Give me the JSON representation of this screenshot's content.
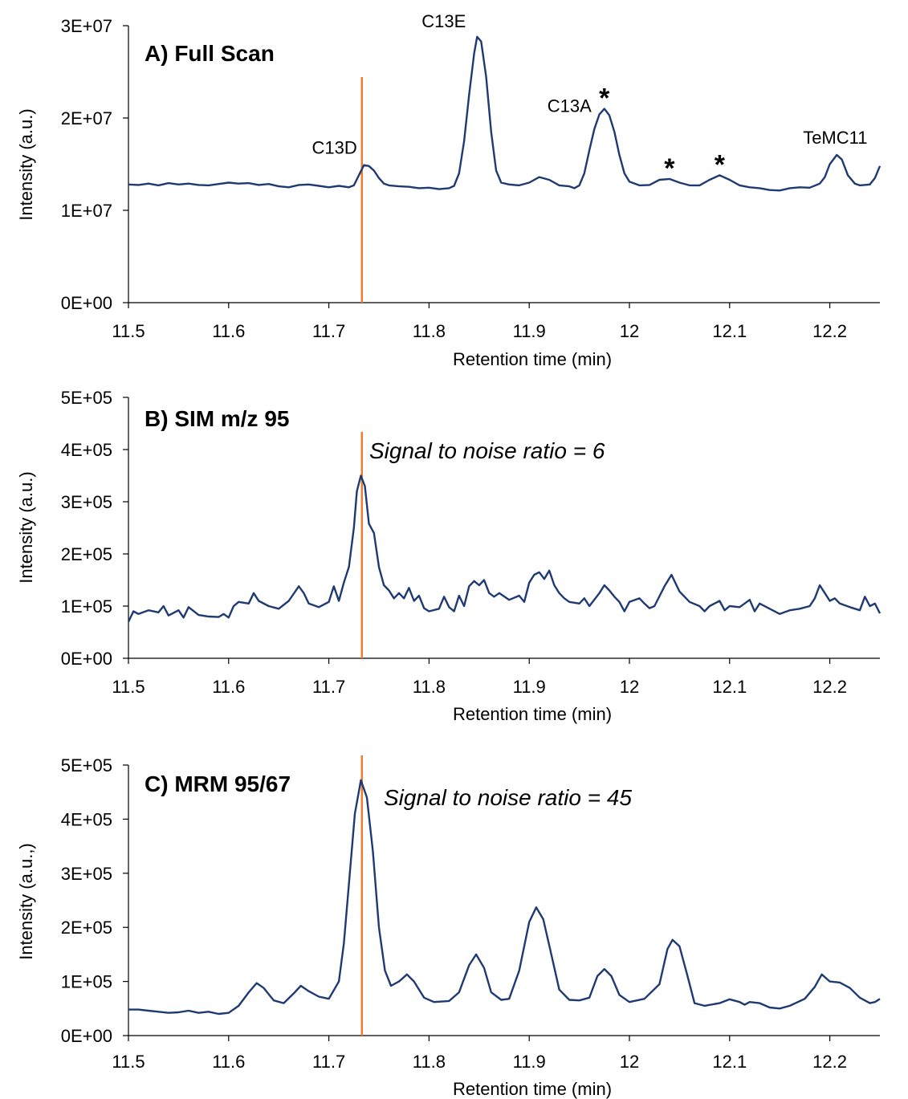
{
  "colors": {
    "trace": "#1f3a73",
    "marker": "#ed7d31",
    "axis": "#000000"
  },
  "chart_data": [
    {
      "type": "line",
      "title": "A) Full Scan",
      "xlabel": "Retention time (min)",
      "ylabel": "Intensity (a.u.)",
      "xlim": [
        11.5,
        12.25
      ],
      "ylim": [
        0,
        30000000
      ],
      "xticks": [
        "11.5",
        "11.6",
        "11.7",
        "11.8",
        "11.9",
        "12",
        "12.1",
        "12.2"
      ],
      "yticks": [
        "0E+00",
        "1E+07",
        "2E+07",
        "3E+07"
      ],
      "marker_x": 11.733,
      "peak_labels": [
        {
          "text": "C13D",
          "x": 11.733,
          "y": 14900000
        },
        {
          "text": "C13E",
          "x": 11.848,
          "y": 28800000
        },
        {
          "text": "C13A",
          "x": 11.975,
          "y": 21000000
        },
        {
          "text": "TeMC11",
          "x": 12.207,
          "y": 16000000
        }
      ],
      "stars": [
        {
          "x": 11.975,
          "y": 21000000
        },
        {
          "x": 12.04,
          "y": 13400000
        },
        {
          "x": 12.09,
          "y": 13800000
        }
      ],
      "points": [
        [
          11.5,
          12800000
        ],
        [
          11.51,
          12750000
        ],
        [
          11.52,
          12900000
        ],
        [
          11.53,
          12700000
        ],
        [
          11.54,
          12950000
        ],
        [
          11.55,
          12800000
        ],
        [
          11.56,
          12900000
        ],
        [
          11.57,
          12750000
        ],
        [
          11.58,
          12700000
        ],
        [
          11.59,
          12850000
        ],
        [
          11.6,
          13000000
        ],
        [
          11.61,
          12900000
        ],
        [
          11.62,
          12950000
        ],
        [
          11.63,
          12750000
        ],
        [
          11.64,
          12850000
        ],
        [
          11.65,
          12600000
        ],
        [
          11.66,
          12500000
        ],
        [
          11.67,
          12750000
        ],
        [
          11.68,
          12800000
        ],
        [
          11.69,
          12650000
        ],
        [
          11.7,
          12500000
        ],
        [
          11.71,
          12650000
        ],
        [
          11.72,
          12500000
        ],
        [
          11.725,
          12700000
        ],
        [
          11.73,
          13800000
        ],
        [
          11.735,
          14900000
        ],
        [
          11.74,
          14800000
        ],
        [
          11.745,
          14300000
        ],
        [
          11.75,
          13500000
        ],
        [
          11.755,
          12900000
        ],
        [
          11.76,
          12700000
        ],
        [
          11.77,
          12600000
        ],
        [
          11.78,
          12550000
        ],
        [
          11.79,
          12400000
        ],
        [
          11.8,
          12450000
        ],
        [
          11.81,
          12300000
        ],
        [
          11.82,
          12400000
        ],
        [
          11.825,
          12650000
        ],
        [
          11.83,
          14000000
        ],
        [
          11.835,
          17500000
        ],
        [
          11.84,
          22500000
        ],
        [
          11.845,
          27000000
        ],
        [
          11.848,
          28800000
        ],
        [
          11.852,
          28300000
        ],
        [
          11.857,
          24500000
        ],
        [
          11.862,
          18500000
        ],
        [
          11.867,
          14300000
        ],
        [
          11.872,
          13000000
        ],
        [
          11.88,
          12800000
        ],
        [
          11.89,
          12700000
        ],
        [
          11.9,
          13000000
        ],
        [
          11.91,
          13600000
        ],
        [
          11.92,
          13300000
        ],
        [
          11.93,
          12700000
        ],
        [
          11.94,
          12600000
        ],
        [
          11.945,
          12400000
        ],
        [
          11.95,
          12700000
        ],
        [
          11.955,
          14000000
        ],
        [
          11.96,
          16500000
        ],
        [
          11.965,
          18800000
        ],
        [
          11.97,
          20400000
        ],
        [
          11.975,
          21000000
        ],
        [
          11.98,
          20300000
        ],
        [
          11.985,
          18500000
        ],
        [
          11.99,
          16000000
        ],
        [
          11.995,
          14000000
        ],
        [
          12.0,
          13100000
        ],
        [
          12.01,
          12700000
        ],
        [
          12.02,
          12750000
        ],
        [
          12.03,
          13300000
        ],
        [
          12.04,
          13400000
        ],
        [
          12.05,
          13000000
        ],
        [
          12.06,
          12700000
        ],
        [
          12.07,
          12700000
        ],
        [
          12.08,
          13300000
        ],
        [
          12.09,
          13800000
        ],
        [
          12.1,
          13300000
        ],
        [
          12.11,
          12700000
        ],
        [
          12.12,
          12500000
        ],
        [
          12.13,
          12400000
        ],
        [
          12.14,
          12200000
        ],
        [
          12.15,
          12150000
        ],
        [
          12.16,
          12400000
        ],
        [
          12.17,
          12500000
        ],
        [
          12.18,
          12450000
        ],
        [
          12.19,
          12900000
        ],
        [
          12.195,
          13600000
        ],
        [
          12.2,
          15000000
        ],
        [
          12.207,
          16000000
        ],
        [
          12.212,
          15500000
        ],
        [
          12.218,
          13800000
        ],
        [
          12.225,
          12900000
        ],
        [
          12.23,
          12700000
        ],
        [
          12.24,
          12800000
        ],
        [
          12.245,
          13500000
        ],
        [
          12.25,
          14800000
        ]
      ]
    },
    {
      "type": "line",
      "title": "B) SIM m/z 95",
      "annotation": "Signal to noise ratio = 6",
      "xlabel": "Retention time (min)",
      "ylabel": "Intensity (a.u.)",
      "xlim": [
        11.5,
        12.25
      ],
      "ylim": [
        0,
        500000
      ],
      "xticks": [
        "11.5",
        "11.6",
        "11.7",
        "11.8",
        "11.9",
        "12",
        "12.1",
        "12.2"
      ],
      "yticks": [
        "0E+00",
        "1E+05",
        "2E+05",
        "3E+05",
        "4E+05",
        "5E+05"
      ],
      "marker_x": 11.733,
      "points": [
        [
          11.5,
          70000
        ],
        [
          11.505,
          90000
        ],
        [
          11.51,
          85000
        ],
        [
          11.52,
          92000
        ],
        [
          11.53,
          88000
        ],
        [
          11.535,
          100000
        ],
        [
          11.54,
          82000
        ],
        [
          11.55,
          92000
        ],
        [
          11.555,
          78000
        ],
        [
          11.56,
          98000
        ],
        [
          11.57,
          83000
        ],
        [
          11.58,
          80000
        ],
        [
          11.59,
          79000
        ],
        [
          11.595,
          85000
        ],
        [
          11.6,
          78000
        ],
        [
          11.605,
          100000
        ],
        [
          11.61,
          108000
        ],
        [
          11.62,
          105000
        ],
        [
          11.625,
          125000
        ],
        [
          11.63,
          110000
        ],
        [
          11.64,
          100000
        ],
        [
          11.65,
          95000
        ],
        [
          11.66,
          110000
        ],
        [
          11.67,
          138000
        ],
        [
          11.675,
          125000
        ],
        [
          11.68,
          105000
        ],
        [
          11.69,
          98000
        ],
        [
          11.7,
          108000
        ],
        [
          11.705,
          138000
        ],
        [
          11.71,
          110000
        ],
        [
          11.715,
          145000
        ],
        [
          11.72,
          175000
        ],
        [
          11.725,
          250000
        ],
        [
          11.728,
          320000
        ],
        [
          11.732,
          350000
        ],
        [
          11.736,
          330000
        ],
        [
          11.74,
          258000
        ],
        [
          11.745,
          240000
        ],
        [
          11.75,
          175000
        ],
        [
          11.755,
          140000
        ],
        [
          11.76,
          130000
        ],
        [
          11.765,
          115000
        ],
        [
          11.77,
          125000
        ],
        [
          11.775,
          115000
        ],
        [
          11.78,
          135000
        ],
        [
          11.785,
          110000
        ],
        [
          11.79,
          120000
        ],
        [
          11.795,
          96000
        ],
        [
          11.8,
          90000
        ],
        [
          11.81,
          95000
        ],
        [
          11.815,
          118000
        ],
        [
          11.82,
          98000
        ],
        [
          11.825,
          90000
        ],
        [
          11.83,
          120000
        ],
        [
          11.835,
          100000
        ],
        [
          11.84,
          138000
        ],
        [
          11.845,
          148000
        ],
        [
          11.85,
          140000
        ],
        [
          11.855,
          150000
        ],
        [
          11.86,
          125000
        ],
        [
          11.865,
          118000
        ],
        [
          11.87,
          125000
        ],
        [
          11.88,
          112000
        ],
        [
          11.89,
          120000
        ],
        [
          11.895,
          108000
        ],
        [
          11.9,
          145000
        ],
        [
          11.905,
          160000
        ],
        [
          11.91,
          165000
        ],
        [
          11.915,
          152000
        ],
        [
          11.92,
          168000
        ],
        [
          11.925,
          140000
        ],
        [
          11.93,
          125000
        ],
        [
          11.935,
          115000
        ],
        [
          11.94,
          108000
        ],
        [
          11.95,
          105000
        ],
        [
          11.955,
          115000
        ],
        [
          11.96,
          100000
        ],
        [
          11.97,
          125000
        ],
        [
          11.975,
          140000
        ],
        [
          11.98,
          130000
        ],
        [
          11.985,
          118000
        ],
        [
          11.99,
          108000
        ],
        [
          11.995,
          90000
        ],
        [
          12.0,
          108000
        ],
        [
          12.01,
          115000
        ],
        [
          12.015,
          105000
        ],
        [
          12.02,
          96000
        ],
        [
          12.025,
          100000
        ],
        [
          12.035,
          138000
        ],
        [
          12.042,
          160000
        ],
        [
          12.05,
          128000
        ],
        [
          12.06,
          108000
        ],
        [
          12.07,
          100000
        ],
        [
          12.075,
          90000
        ],
        [
          12.08,
          100000
        ],
        [
          12.09,
          110000
        ],
        [
          12.095,
          92000
        ],
        [
          12.1,
          100000
        ],
        [
          12.11,
          98000
        ],
        [
          12.12,
          112000
        ],
        [
          12.125,
          90000
        ],
        [
          12.13,
          105000
        ],
        [
          12.14,
          95000
        ],
        [
          12.15,
          85000
        ],
        [
          12.16,
          92000
        ],
        [
          12.17,
          95000
        ],
        [
          12.18,
          100000
        ],
        [
          12.185,
          115000
        ],
        [
          12.19,
          140000
        ],
        [
          12.195,
          125000
        ],
        [
          12.2,
          110000
        ],
        [
          12.205,
          115000
        ],
        [
          12.21,
          105000
        ],
        [
          12.22,
          98000
        ],
        [
          12.23,
          92000
        ],
        [
          12.235,
          118000
        ],
        [
          12.24,
          100000
        ],
        [
          12.245,
          105000
        ],
        [
          12.25,
          86000
        ]
      ]
    },
    {
      "type": "line",
      "title": "C) MRM 95/67",
      "annotation": "Signal to noise ratio = 45",
      "xlabel": "Retention time (min)",
      "ylabel": "Intensity (a.u.,)",
      "xlim": [
        11.5,
        12.25
      ],
      "ylim": [
        0,
        500000
      ],
      "xticks": [
        "11.5",
        "11.6",
        "11.7",
        "11.8",
        "11.9",
        "12",
        "12.1",
        "12.2"
      ],
      "yticks": [
        "0E+00",
        "1E+05",
        "2E+05",
        "3E+05",
        "4E+05",
        "5E+05"
      ],
      "marker_x": 11.733,
      "points": [
        [
          11.5,
          48000
        ],
        [
          11.51,
          48000
        ],
        [
          11.52,
          46000
        ],
        [
          11.53,
          44000
        ],
        [
          11.54,
          42000
        ],
        [
          11.55,
          43000
        ],
        [
          11.56,
          46000
        ],
        [
          11.57,
          42000
        ],
        [
          11.58,
          44000
        ],
        [
          11.59,
          40000
        ],
        [
          11.6,
          42000
        ],
        [
          11.61,
          55000
        ],
        [
          11.62,
          80000
        ],
        [
          11.628,
          97000
        ],
        [
          11.635,
          88000
        ],
        [
          11.645,
          65000
        ],
        [
          11.655,
          60000
        ],
        [
          11.665,
          78000
        ],
        [
          11.672,
          92000
        ],
        [
          11.68,
          82000
        ],
        [
          11.69,
          72000
        ],
        [
          11.7,
          68000
        ],
        [
          11.71,
          100000
        ],
        [
          11.715,
          170000
        ],
        [
          11.72,
          280000
        ],
        [
          11.726,
          410000
        ],
        [
          11.732,
          472000
        ],
        [
          11.738,
          440000
        ],
        [
          11.744,
          340000
        ],
        [
          11.75,
          200000
        ],
        [
          11.756,
          120000
        ],
        [
          11.762,
          92000
        ],
        [
          11.77,
          100000
        ],
        [
          11.778,
          113000
        ],
        [
          11.785,
          100000
        ],
        [
          11.795,
          70000
        ],
        [
          11.805,
          62000
        ],
        [
          11.82,
          64000
        ],
        [
          11.83,
          80000
        ],
        [
          11.84,
          130000
        ],
        [
          11.847,
          150000
        ],
        [
          11.855,
          125000
        ],
        [
          11.862,
          80000
        ],
        [
          11.872,
          66000
        ],
        [
          11.88,
          68000
        ],
        [
          11.89,
          120000
        ],
        [
          11.9,
          210000
        ],
        [
          11.907,
          237000
        ],
        [
          11.914,
          215000
        ],
        [
          11.922,
          150000
        ],
        [
          11.93,
          85000
        ],
        [
          11.94,
          66000
        ],
        [
          11.95,
          65000
        ],
        [
          11.96,
          70000
        ],
        [
          11.968,
          110000
        ],
        [
          11.975,
          123000
        ],
        [
          11.982,
          110000
        ],
        [
          11.99,
          75000
        ],
        [
          12.0,
          62000
        ],
        [
          12.015,
          68000
        ],
        [
          12.03,
          95000
        ],
        [
          12.038,
          160000
        ],
        [
          12.043,
          177000
        ],
        [
          12.05,
          165000
        ],
        [
          12.058,
          110000
        ],
        [
          12.065,
          60000
        ],
        [
          12.075,
          55000
        ],
        [
          12.09,
          60000
        ],
        [
          12.1,
          67000
        ],
        [
          12.11,
          62000
        ],
        [
          12.115,
          57000
        ],
        [
          12.12,
          62000
        ],
        [
          12.13,
          60000
        ],
        [
          12.14,
          52000
        ],
        [
          12.15,
          50000
        ],
        [
          12.16,
          55000
        ],
        [
          12.175,
          68000
        ],
        [
          12.185,
          90000
        ],
        [
          12.192,
          113000
        ],
        [
          12.2,
          100000
        ],
        [
          12.21,
          98000
        ],
        [
          12.22,
          88000
        ],
        [
          12.23,
          70000
        ],
        [
          12.24,
          60000
        ],
        [
          12.245,
          62000
        ],
        [
          12.25,
          68000
        ]
      ]
    }
  ]
}
